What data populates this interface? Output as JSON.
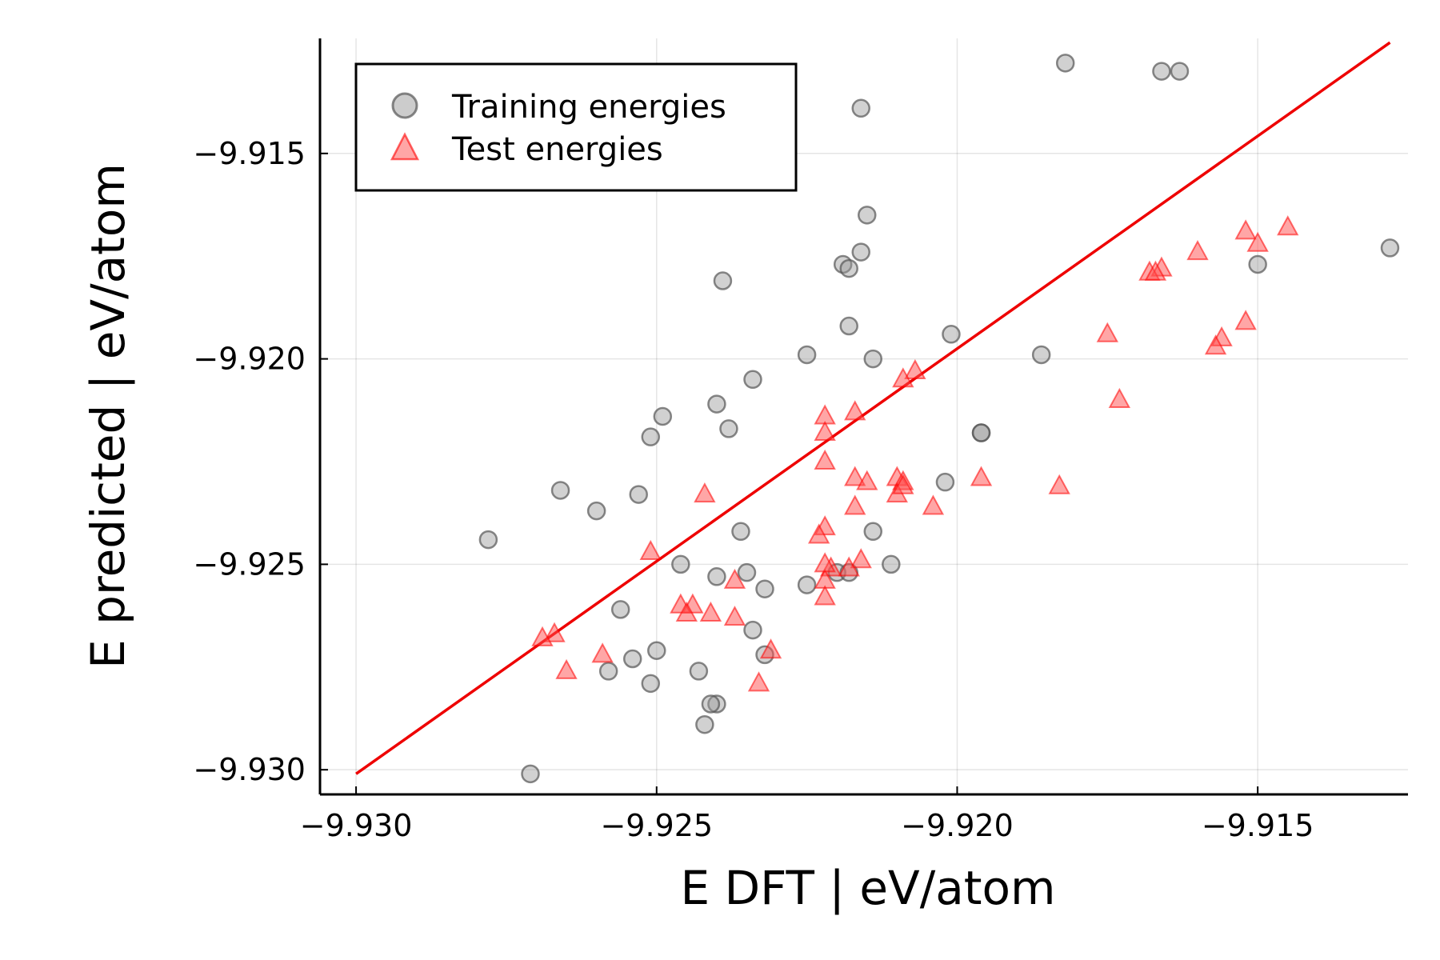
{
  "chart_data": {
    "type": "scatter",
    "xlabel": "E DFT | eV/atom",
    "ylabel": "E predicted | eV/atom",
    "xlim": [
      -9.9306,
      -9.9125
    ],
    "ylim": [
      -9.9306,
      -9.9122
    ],
    "x_ticks": [
      -9.93,
      -9.925,
      -9.92,
      -9.915
    ],
    "x_tick_labels": [
      "−9.930",
      "−9.925",
      "−9.920",
      "−9.915"
    ],
    "y_ticks": [
      -9.93,
      -9.925,
      -9.92,
      -9.915
    ],
    "y_tick_labels": [
      "−9.930",
      "−9.925",
      "−9.920",
      "−9.915"
    ],
    "grid": true,
    "legend_position": "top-left",
    "series": [
      {
        "name": "Training energies",
        "marker": "circle",
        "color": "#9a9a9a",
        "x": [
          -9.9182,
          -9.9166,
          -9.9163,
          -9.9216,
          -9.9215,
          -9.9216,
          -9.9219,
          -9.9218,
          -9.9239,
          -9.9218,
          -9.9201,
          -9.9225,
          -9.9186,
          -9.9214,
          -9.9234,
          -9.924,
          -9.9249,
          -9.9238,
          -9.9251,
          -9.9266,
          -9.926,
          -9.9253,
          -9.9278,
          -9.9196,
          -9.9196,
          -9.9202,
          -9.9236,
          -9.9214,
          -9.9246,
          -9.9211,
          -9.9235,
          -9.924,
          -9.9232,
          -9.9225,
          -9.922,
          -9.9218,
          -9.9256,
          -9.9254,
          -9.925,
          -9.9258,
          -9.9234,
          -9.9232,
          -9.9243,
          -9.9251,
          -9.924,
          -9.9241,
          -9.9242,
          -9.9271,
          -9.9128,
          -9.915
        ],
        "y": [
          -9.9128,
          -9.913,
          -9.913,
          -9.9139,
          -9.9165,
          -9.9174,
          -9.9177,
          -9.9178,
          -9.9181,
          -9.9192,
          -9.9194,
          -9.9199,
          -9.9199,
          -9.92,
          -9.9205,
          -9.9211,
          -9.9214,
          -9.9217,
          -9.9219,
          -9.9232,
          -9.9237,
          -9.9233,
          -9.9244,
          -9.9218,
          -9.9218,
          -9.923,
          -9.9242,
          -9.9242,
          -9.925,
          -9.925,
          -9.9252,
          -9.9253,
          -9.9256,
          -9.9255,
          -9.9252,
          -9.9252,
          -9.9261,
          -9.9273,
          -9.9271,
          -9.9276,
          -9.9266,
          -9.9272,
          -9.9276,
          -9.9279,
          -9.9284,
          -9.9284,
          -9.9289,
          -9.9301,
          -9.9173,
          -9.9177
        ]
      },
      {
        "name": "Test energies",
        "marker": "triangle",
        "color": "#ff4d4d",
        "x": [
          -9.9145,
          -9.9152,
          -9.915,
          -9.916,
          -9.9166,
          -9.9168,
          -9.9167,
          -9.9175,
          -9.9152,
          -9.9156,
          -9.9157,
          -9.9173,
          -9.9183,
          -9.9196,
          -9.9204,
          -9.9207,
          -9.9209,
          -9.9217,
          -9.9222,
          -9.9222,
          -9.9222,
          -9.9217,
          -9.9215,
          -9.921,
          -9.9209,
          -9.921,
          -9.9209,
          -9.9222,
          -9.9223,
          -9.9217,
          -9.9216,
          -9.9218,
          -9.9221,
          -9.9222,
          -9.9222,
          -9.9222,
          -9.9242,
          -9.9251,
          -9.9237,
          -9.9244,
          -9.9246,
          -9.9245,
          -9.9241,
          -9.9237,
          -9.9231,
          -9.9233,
          -9.9259,
          -9.9265,
          -9.9267,
          -9.9269
        ],
        "y": [
          -9.9168,
          -9.9169,
          -9.9172,
          -9.9174,
          -9.9178,
          -9.9179,
          -9.9179,
          -9.9194,
          -9.9191,
          -9.9195,
          -9.9197,
          -9.921,
          -9.9231,
          -9.9229,
          -9.9236,
          -9.9203,
          -9.9205,
          -9.9213,
          -9.9214,
          -9.9218,
          -9.9225,
          -9.9229,
          -9.923,
          -9.9229,
          -9.923,
          -9.9233,
          -9.9231,
          -9.9241,
          -9.9243,
          -9.9236,
          -9.9249,
          -9.9251,
          -9.9251,
          -9.9254,
          -9.9258,
          -9.925,
          -9.9233,
          -9.9247,
          -9.9254,
          -9.926,
          -9.926,
          -9.9262,
          -9.9262,
          -9.9263,
          -9.9271,
          -9.9279,
          -9.9272,
          -9.9276,
          -9.9267,
          -9.9268
        ]
      },
      {
        "name": "",
        "marker": "line",
        "color": "#ee0000",
        "x": [
          -9.93,
          -9.9128
        ],
        "y": [
          -9.9301,
          -9.9123
        ]
      }
    ]
  }
}
